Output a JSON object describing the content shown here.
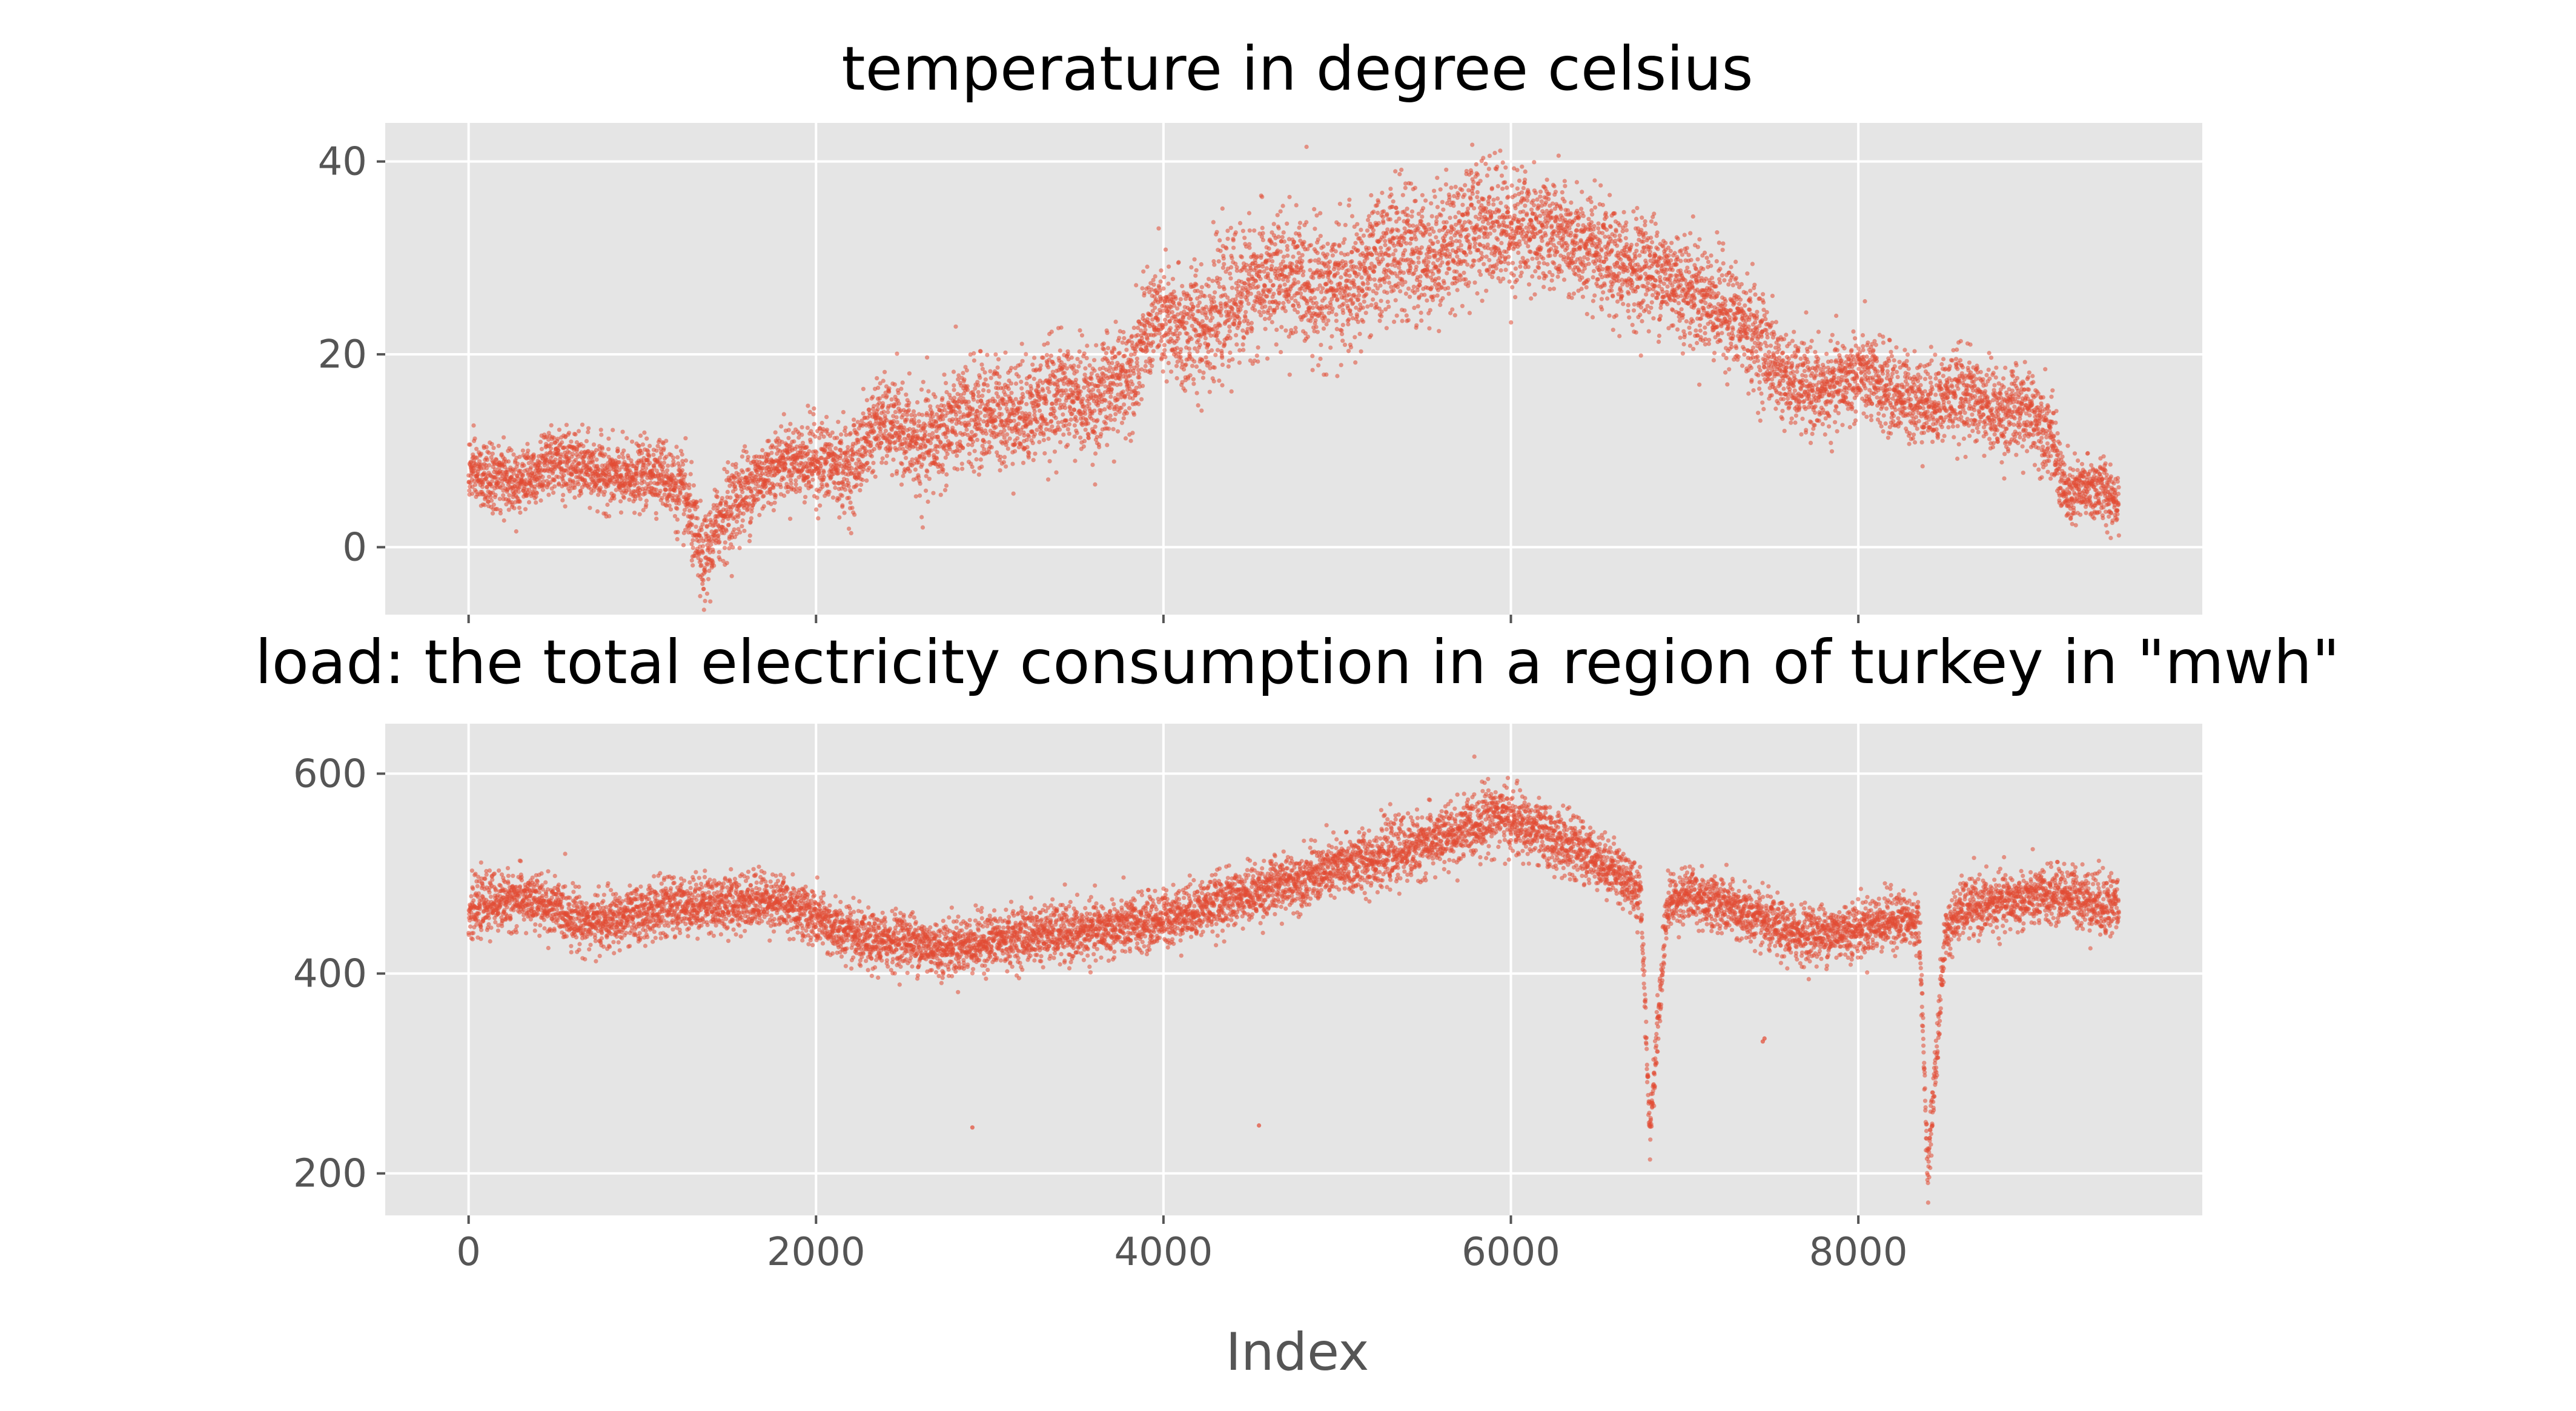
{
  "chart_data": [
    {
      "type": "scatter",
      "title": "temperature in degree celsius",
      "xlabel": "",
      "ylabel": "",
      "xlim": [
        -480,
        9980
      ],
      "ylim": [
        -7,
        44
      ],
      "xticks": [
        0,
        2000,
        4000,
        6000,
        8000
      ],
      "xticklabels": [
        "",
        "",
        "",
        "",
        ""
      ],
      "yticks": [
        0,
        20,
        40
      ],
      "yticklabels": [
        "0",
        "20",
        "40"
      ],
      "grid": true,
      "color": "#e24a33",
      "profile": {
        "x": [
          0,
          100,
          300,
          500,
          700,
          900,
          1100,
          1250,
          1350,
          1450,
          1600,
          1800,
          2000,
          2200,
          2350,
          2500,
          2600,
          2800,
          3000,
          3200,
          3400,
          3600,
          3800,
          3950,
          4100,
          4300,
          4500,
          4700,
          4900,
          5100,
          5300,
          5500,
          5700,
          5800,
          6000,
          6200,
          6400,
          6600,
          6800,
          7000,
          7200,
          7400,
          7600,
          7800,
          8000,
          8200,
          8400,
          8600,
          8800,
          9000,
          9100,
          9200,
          9300,
          9400,
          9500
        ],
        "center": [
          8,
          7,
          7,
          9,
          8,
          7,
          8,
          5,
          -2,
          3,
          6,
          9,
          9,
          8,
          13,
          12,
          10,
          13,
          14,
          14,
          16,
          15,
          18,
          24,
          22,
          24,
          27,
          28,
          27,
          27,
          31,
          30,
          32,
          34,
          33,
          33,
          31,
          29,
          29,
          27,
          25,
          22,
          17,
          16,
          18,
          16,
          15,
          16,
          14,
          14,
          12,
          5,
          6,
          6,
          5
        ],
        "spread": [
          3,
          3,
          3,
          3,
          3,
          3,
          3,
          4,
          4,
          4,
          4,
          3,
          4,
          4,
          4,
          4,
          5,
          5,
          5,
          5,
          5,
          5,
          5,
          5,
          6,
          6,
          6,
          6,
          6,
          6,
          6,
          6,
          6,
          6,
          6,
          5,
          5,
          5,
          5,
          5,
          5,
          5,
          4,
          4,
          4,
          4,
          4,
          4,
          4,
          4,
          4,
          3,
          3,
          3,
          3
        ]
      },
      "n_points": 9500
    },
    {
      "type": "scatter",
      "title": "load: the total electricity consumption in a region of turkey in \"mwh\"",
      "xlabel": "Index",
      "ylabel": "",
      "xlim": [
        -480,
        9980
      ],
      "ylim": [
        158,
        650
      ],
      "xticks": [
        0,
        2000,
        4000,
        6000,
        8000
      ],
      "xticklabels": [
        "0",
        "2000",
        "4000",
        "6000",
        "8000"
      ],
      "yticks": [
        200,
        400,
        600
      ],
      "yticklabels": [
        "200",
        "400",
        "600"
      ],
      "grid": true,
      "color": "#e24a33",
      "profile": {
        "x": [
          0,
          100,
          300,
          500,
          700,
          900,
          1100,
          1300,
          1500,
          1700,
          1900,
          2100,
          2300,
          2500,
          2700,
          2900,
          3100,
          3300,
          3500,
          3700,
          3900,
          4100,
          4300,
          4500,
          4700,
          4900,
          5100,
          5300,
          5500,
          5700,
          5900,
          6100,
          6300,
          6500,
          6700,
          6750,
          6800,
          6850,
          6900,
          7000,
          7200,
          7400,
          7600,
          7800,
          8000,
          8200,
          8350,
          8400,
          8450,
          8500,
          8600,
          8800,
          9000,
          9200,
          9400,
          9500
        ],
        "center": [
          460,
          470,
          475,
          465,
          450,
          455,
          465,
          470,
          470,
          475,
          465,
          445,
          430,
          435,
          425,
          430,
          435,
          440,
          440,
          445,
          450,
          460,
          470,
          480,
          490,
          500,
          510,
          520,
          530,
          540,
          560,
          545,
          530,
          515,
          490,
          470,
          240,
          360,
          470,
          480,
          470,
          455,
          440,
          440,
          445,
          455,
          450,
          200,
          320,
          440,
          465,
          470,
          475,
          480,
          470,
          470
        ],
        "spread": [
          25,
          25,
          25,
          25,
          25,
          25,
          25,
          25,
          25,
          25,
          25,
          25,
          25,
          25,
          25,
          25,
          25,
          25,
          25,
          25,
          25,
          25,
          25,
          25,
          25,
          25,
          28,
          28,
          28,
          28,
          30,
          28,
          28,
          25,
          25,
          25,
          20,
          30,
          25,
          25,
          25,
          25,
          25,
          25,
          25,
          25,
          25,
          20,
          30,
          25,
          25,
          25,
          25,
          25,
          30,
          30
        ]
      },
      "outliers": [
        {
          "x": 2900,
          "y": 246
        },
        {
          "x": 4550,
          "y": 248
        },
        {
          "x": 7450,
          "y": 332
        },
        {
          "x": 7460,
          "y": 335
        }
      ],
      "n_points": 9500
    }
  ]
}
